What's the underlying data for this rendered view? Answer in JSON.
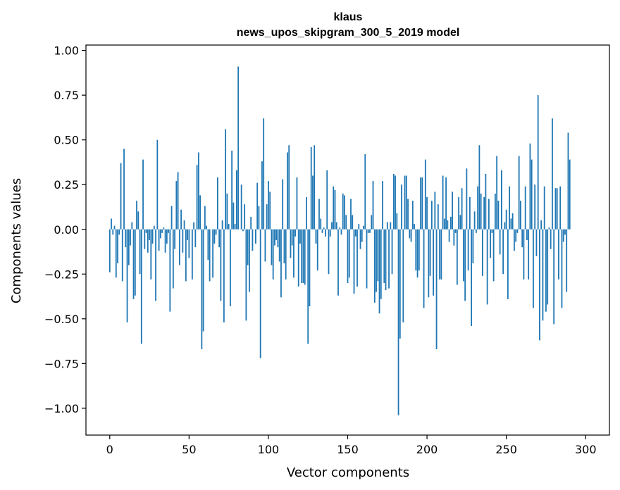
{
  "chart_data": {
    "type": "bar",
    "title_line1": "klaus",
    "title_line2": "news_upos_skipgram_300_5_2019 model",
    "xlabel": "Vector components",
    "ylabel": "Components values",
    "xlim": [
      -15,
      315
    ],
    "ylim": [
      -1.15,
      1.03
    ],
    "xticks": [
      0,
      50,
      100,
      150,
      200,
      250,
      300
    ],
    "xtick_labels": [
      "0",
      "50",
      "100",
      "150",
      "200",
      "250",
      "300"
    ],
    "yticks": [
      1.0,
      0.75,
      0.5,
      0.25,
      0.0,
      -0.25,
      -0.5,
      -0.75,
      -1.0
    ],
    "ytick_labels": [
      "1.00",
      "0.75",
      "0.50",
      "0.25",
      "0.00",
      "−0.25",
      "−0.50",
      "−0.75",
      "−1.00"
    ],
    "color": "#1f77b4",
    "values": [
      -0.24,
      0.06,
      -0.03,
      0.02,
      -0.27,
      -0.19,
      -0.03,
      0.37,
      -0.29,
      0.45,
      -0.1,
      -0.52,
      -0.2,
      -0.09,
      0.04,
      -0.39,
      -0.37,
      0.16,
      0.1,
      -0.25,
      -0.64,
      0.39,
      -0.11,
      -0.02,
      -0.13,
      -0.06,
      -0.28,
      -0.08,
      0.02,
      -0.4,
      0.5,
      -0.12,
      -0.05,
      -0.02,
      0.01,
      -0.13,
      -0.08,
      -0.02,
      -0.46,
      0.13,
      -0.33,
      -0.11,
      0.27,
      0.32,
      -0.2,
      0.11,
      -0.13,
      0.05,
      -0.29,
      -0.06,
      -0.16,
      0.0,
      -0.28,
      0.04,
      -0.1,
      0.36,
      0.43,
      0.19,
      -0.67,
      -0.57,
      0.13,
      0.02,
      -0.17,
      -0.29,
      0.0,
      -0.27,
      -0.08,
      -0.03,
      0.29,
      -0.1,
      -0.4,
      0.05,
      -0.52,
      0.56,
      0.2,
      0.03,
      -0.43,
      0.44,
      0.15,
      0.03,
      0.33,
      0.91,
      0.0,
      0.25,
      -0.01,
      0.14,
      -0.51,
      -0.2,
      -0.35,
      0.07,
      -0.12,
      0.0,
      -0.08,
      0.26,
      0.13,
      -0.72,
      0.38,
      0.62,
      -0.18,
      0.14,
      0.27,
      0.21,
      -0.2,
      -0.28,
      -0.09,
      -0.06,
      -0.1,
      -0.18,
      -0.38,
      0.28,
      -0.19,
      -0.28,
      0.43,
      0.47,
      -0.16,
      -0.09,
      -0.27,
      -0.04,
      0.29,
      -0.32,
      -0.08,
      -0.3,
      -0.3,
      -0.31,
      0.18,
      -0.64,
      -0.43,
      0.46,
      0.3,
      0.47,
      -0.08,
      -0.23,
      0.17,
      0.06,
      -0.02,
      0.01,
      -0.04,
      0.33,
      -0.25,
      -0.04,
      0.04,
      0.24,
      0.22,
      0.04,
      -0.37,
      0.01,
      -0.03,
      0.2,
      0.19,
      0.08,
      -0.3,
      -0.27,
      0.17,
      0.08,
      -0.36,
      -0.04,
      -0.32,
      0.03,
      -0.11,
      -0.07,
      0.02,
      0.42,
      -0.33,
      -0.02,
      -0.02,
      0.08,
      0.27,
      -0.41,
      -0.35,
      -0.29,
      -0.47,
      -0.39,
      0.27,
      -0.3,
      -0.34,
      0.04,
      -0.33,
      0.04,
      -0.25,
      0.31,
      0.3,
      0.09,
      -1.04,
      -0.61,
      0.25,
      -0.52,
      0.3,
      0.3,
      0.17,
      -0.05,
      -0.07,
      0.16,
      0.03,
      -0.23,
      -0.27,
      -0.23,
      0.29,
      0.29,
      -0.44,
      0.39,
      0.18,
      -0.38,
      -0.26,
      0.16,
      -0.37,
      0.21,
      -0.67,
      0.14,
      -0.28,
      -0.28,
      0.3,
      0.06,
      0.29,
      0.05,
      -0.07,
      0.07,
      0.21,
      -0.09,
      -0.02,
      -0.31,
      0.18,
      0.08,
      0.23,
      -0.29,
      -0.4,
      0.34,
      -0.23,
      0.18,
      -0.54,
      -0.19,
      0.1,
      -0.02,
      0.24,
      0.47,
      0.2,
      -0.26,
      0.18,
      0.31,
      -0.42,
      0.17,
      -0.16,
      -0.02,
      -0.29,
      0.2,
      0.41,
      0.16,
      -0.14,
      0.33,
      -0.25,
      0.04,
      0.11,
      -0.39,
      0.24,
      0.06,
      0.09,
      -0.12,
      -0.07,
      -0.02,
      0.41,
      0.16,
      -0.1,
      -0.28,
      0.24,
      -0.06,
      -0.28,
      0.48,
      0.39,
      -0.44,
      0.25,
      -0.15,
      0.75,
      -0.62,
      0.05,
      -0.51,
      0.24,
      -0.46,
      -0.42,
      0.01,
      -0.11,
      0.62,
      -0.53,
      0.23,
      0.23,
      -0.28,
      0.24,
      -0.44,
      -0.07,
      -0.03,
      -0.35,
      0.54,
      0.39
    ]
  }
}
